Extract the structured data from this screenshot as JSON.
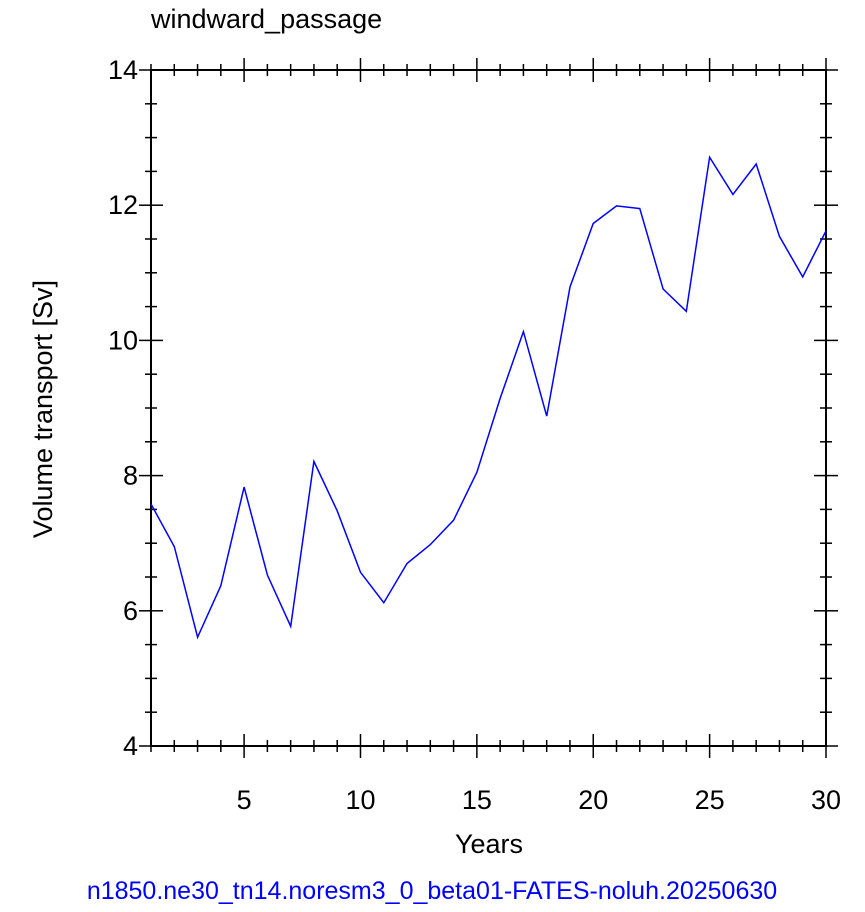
{
  "chart_data": {
    "type": "line",
    "title": "windward_passage",
    "xlabel": "Years",
    "ylabel": "Volume transport [Sv]",
    "footer": "n1850.ne30_tn14.noresm3_0_beta01-FATES-noluh.20250630",
    "xlim": [
      1,
      30
    ],
    "ylim": [
      4,
      14
    ],
    "x_ticks": [
      5,
      10,
      15,
      20,
      25,
      30
    ],
    "y_ticks": [
      4,
      6,
      8,
      10,
      12,
      14
    ],
    "grid": false,
    "series": [
      {
        "color": "#0000ff",
        "x": [
          1,
          2,
          3,
          4,
          5,
          6,
          7,
          8,
          9,
          10,
          11,
          12,
          13,
          14,
          15,
          16,
          17,
          18,
          19,
          20,
          21,
          22,
          23,
          24,
          25,
          26,
          27,
          28,
          29,
          30
        ],
        "y": [
          7.58,
          6.95,
          5.61,
          6.37,
          7.83,
          6.53,
          5.77,
          8.21,
          7.48,
          6.57,
          6.12,
          6.7,
          6.98,
          7.34,
          8.05,
          9.14,
          10.13,
          8.88,
          10.79,
          11.73,
          11.99,
          11.95,
          10.76,
          10.43,
          12.71,
          12.16,
          12.61,
          11.54,
          10.94,
          11.62
        ]
      }
    ]
  }
}
